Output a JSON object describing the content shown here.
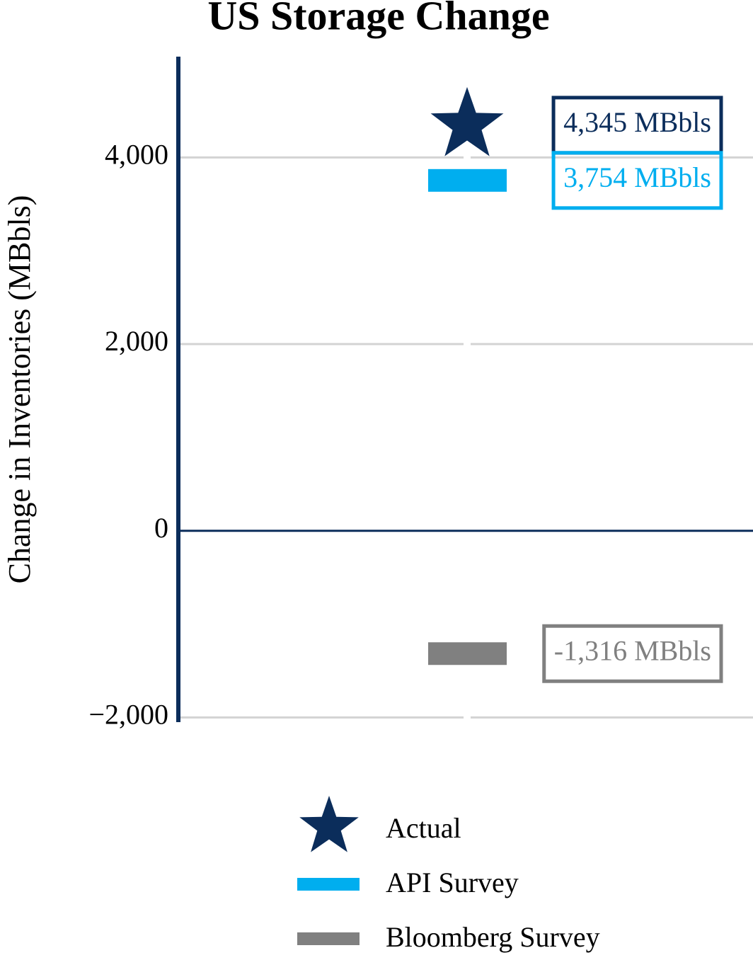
{
  "chart_data": {
    "type": "marker",
    "title": "US Storage Change",
    "y_label": "Change in Inventories (MBbls)",
    "ylim": [
      -2050,
      5080
    ],
    "yticks": [
      {
        "value": -2000,
        "label": "−2,000"
      },
      0,
      {
        "value": 2000,
        "label": "2,000"
      },
      {
        "value": 4000,
        "label": "4,000"
      }
    ],
    "grid": true,
    "series": [
      {
        "name": "Actual",
        "marker": "star",
        "color": "#0b2d5b",
        "values": [
          4345
        ],
        "value_labels": [
          "4,345 MBbls"
        ]
      },
      {
        "name": "API Survey",
        "marker": "bar",
        "color": "#00aeef",
        "values": [
          3754
        ],
        "value_labels": [
          "3,754 MBbls"
        ]
      },
      {
        "name": "Bloomberg Survey",
        "marker": "bar",
        "color": "#808080",
        "values": [
          -1316
        ],
        "value_labels": [
          "-1,316 MBbls"
        ]
      }
    ]
  }
}
